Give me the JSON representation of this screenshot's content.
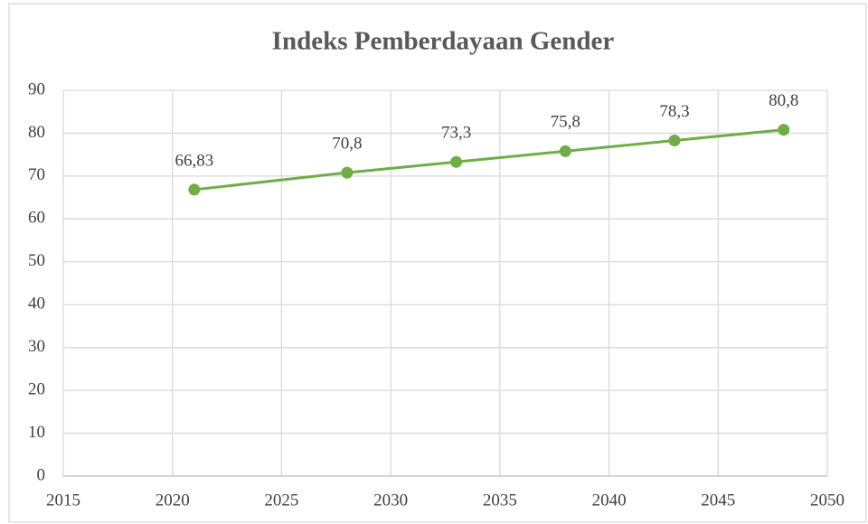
{
  "chart_data": {
    "type": "line",
    "title": "Indeks Pemberdayaan Gender",
    "x": [
      2021,
      2028,
      2033,
      2038,
      2043,
      2048
    ],
    "series": [
      {
        "name": "Indeks Pemberdayaan Gender",
        "color": "#70ad47",
        "values": [
          66.83,
          70.8,
          73.3,
          75.8,
          78.3,
          80.8
        ],
        "value_labels": [
          "66,83",
          "70,8",
          "73,3",
          "75,8",
          "78,3",
          "80,8"
        ]
      }
    ],
    "xlim": [
      2015,
      2050
    ],
    "xticks": [
      2015,
      2020,
      2025,
      2030,
      2035,
      2040,
      2045,
      2050
    ],
    "ylim": [
      0,
      90
    ],
    "yticks": [
      0,
      10,
      20,
      30,
      40,
      50,
      60,
      70,
      80,
      90
    ],
    "grid": true
  }
}
